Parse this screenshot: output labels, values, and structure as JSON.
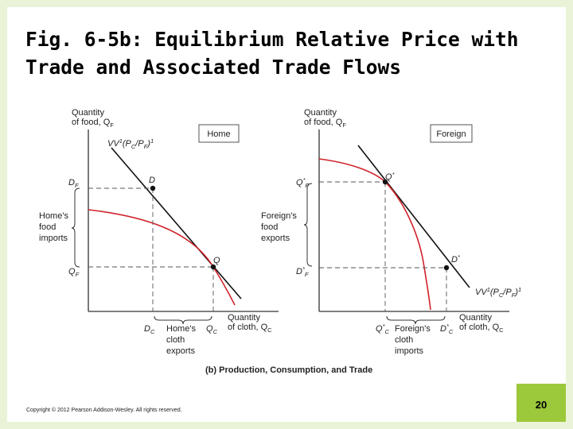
{
  "slide": {
    "title_line1": "Fig. 6-5b: Equilibrium Relative Price with",
    "title_line2": "Trade and Associated Trade Flows",
    "copyright": "Copyright © 2012 Pearson Addison-Wesley. All rights reserved.",
    "page_number": "20"
  },
  "figure": {
    "caption": "(b) Production, Consumption, and Trade",
    "home": {
      "panel_label": "Home",
      "y_axis_line1": "Quantity",
      "y_axis_line2": "of food, Q",
      "y_axis_sub": "F",
      "x_axis_line1": "Quantity",
      "x_axis_line2": "of cloth, Q",
      "x_axis_sub": "C",
      "isovalue_main": "VV",
      "isovalue_sup": "1",
      "isovalue_open": "(P",
      "isovalue_c": "C",
      "isovalue_slash": "/P",
      "isovalue_f": "F",
      "isovalue_close": ")",
      "isovalue_sup2": "1",
      "point_d": "D",
      "point_q": "Q",
      "df_main": "D",
      "df_sub": "F",
      "qf_main": "Q",
      "qf_sub": "F",
      "dc_main": "D",
      "dc_sub": "C",
      "qc_main": "Q",
      "qc_sub": "C",
      "imports_line1": "Home's",
      "imports_line2": "food",
      "imports_line3": "imports",
      "exports_line1": "Home's",
      "exports_line2": "cloth",
      "exports_line3": "exports"
    },
    "foreign": {
      "panel_label": "Foreign",
      "y_axis_line1": "Quantity",
      "y_axis_line2": "of food, Q",
      "y_axis_sub": "F",
      "x_axis_line1": "Quantity",
      "x_axis_line2": "of cloth, Q",
      "x_axis_sub": "C",
      "isovalue_main": "VV",
      "isovalue_sup": "1",
      "isovalue_open": "(P",
      "isovalue_c": "C",
      "isovalue_slash": "/P",
      "isovalue_f": "F",
      "isovalue_close": ")",
      "isovalue_sup2": "1",
      "point_q": "Q",
      "point_q_star": "*",
      "point_d": "D",
      "point_d_star": "*",
      "qf_main": "Q",
      "qf_star": "*",
      "qf_sub": "F",
      "df_main": "D",
      "df_star": "*",
      "df_sub": "F",
      "qc_main": "Q",
      "qc_star": "*",
      "qc_sub": "C",
      "dc_main": "D",
      "dc_star": "*",
      "dc_sub": "C",
      "exports_line1": "Foreign's",
      "exports_line2": "food",
      "exports_line3": "exports",
      "imports_line1": "Foreign's",
      "imports_line2": "cloth",
      "imports_line3": "imports"
    },
    "colors": {
      "ppf": "#d0222a",
      "lines": "#111111",
      "axes": "#333333",
      "label_box_border": "#555555"
    }
  }
}
